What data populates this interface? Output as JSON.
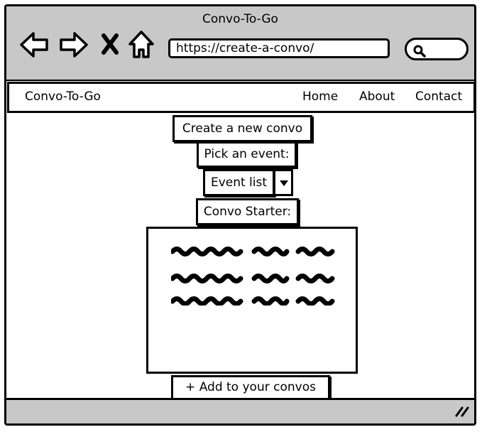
{
  "window": {
    "title": "Convo-To-Go"
  },
  "browser": {
    "url": "https://create-a-convo/",
    "icons": [
      "back-arrow-icon",
      "forward-arrow-icon",
      "close-x-icon",
      "home-icon",
      "search-icon"
    ]
  },
  "site_nav": {
    "brand": "Convo-To-Go",
    "links": [
      "Home",
      "About",
      "Contact"
    ]
  },
  "form": {
    "heading": "Create a new convo",
    "pick_label": "Pick an event:",
    "event_select_value": "Event list",
    "starter_label": "Convo Starter:",
    "add_button": "+ Add to your convos"
  },
  "colors": {
    "chrome": "#c8c8c8",
    "border": "#000000",
    "background": "#ffffff"
  }
}
